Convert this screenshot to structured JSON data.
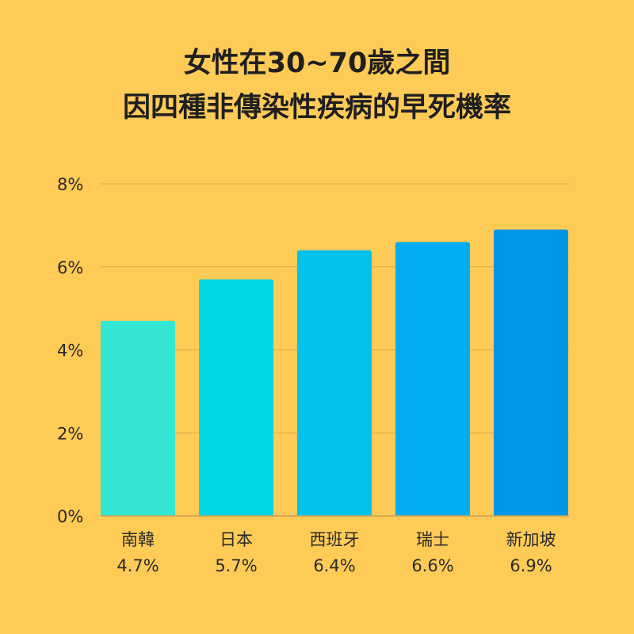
{
  "chart_data": {
    "type": "bar",
    "title_lines": [
      "女性在30~70歲之間",
      "因四種非傳染性疾病的早死機率"
    ],
    "categories": [
      "南韓",
      "日本",
      "西班牙",
      "瑞士",
      "新加坡"
    ],
    "values": [
      4.7,
      5.7,
      6.4,
      6.6,
      6.9
    ],
    "value_labels": [
      "4.7%",
      "5.7%",
      "6.4%",
      "6.6%",
      "6.9%"
    ],
    "colors": [
      "#33E6D3",
      "#00D5E2",
      "#00C2EC",
      "#00ADF0",
      "#0096E6"
    ],
    "yticks": [
      0,
      2,
      4,
      6,
      8
    ],
    "ytick_labels": [
      "0%",
      "2%",
      "4%",
      "6%",
      "8%"
    ],
    "ylim": [
      0,
      8
    ],
    "grid": true,
    "xlabel": "",
    "ylabel": ""
  }
}
